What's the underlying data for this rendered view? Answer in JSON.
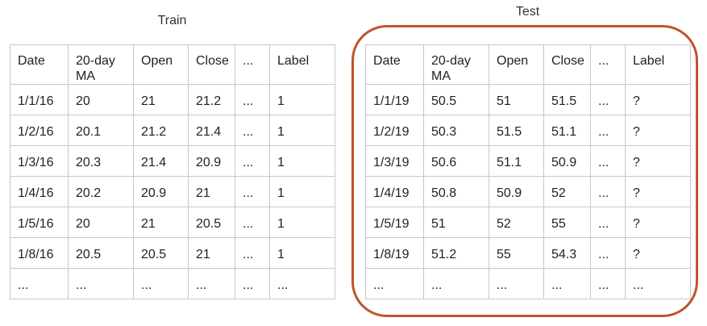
{
  "train": {
    "title": "Train",
    "headers": [
      "Date",
      "20-day MA",
      "Open",
      "Close",
      "...",
      "Label"
    ],
    "rows": [
      [
        "1/1/16",
        "20",
        "21",
        "21.2",
        "...",
        "1"
      ],
      [
        "1/2/16",
        "20.1",
        "21.2",
        "21.4",
        "...",
        "1"
      ],
      [
        "1/3/16",
        "20.3",
        "21.4",
        "20.9",
        "...",
        "1"
      ],
      [
        "1/4/16",
        "20.2",
        "20.9",
        "21",
        "...",
        "1"
      ],
      [
        "1/5/16",
        "20",
        "21",
        "20.5",
        "...",
        "1"
      ],
      [
        "1/8/16",
        "20.5",
        "20.5",
        "21",
        "...",
        "1"
      ],
      [
        "...",
        "...",
        "...",
        "...",
        "...",
        "..."
      ]
    ]
  },
  "test": {
    "title": "Test",
    "headers": [
      "Date",
      "20-day MA",
      "Open",
      "Close",
      "...",
      "Label"
    ],
    "rows": [
      [
        "1/1/19",
        "50.5",
        "51",
        "51.5",
        "...",
        "?"
      ],
      [
        "1/2/19",
        "50.3",
        "51.5",
        "51.1",
        "...",
        "?"
      ],
      [
        "1/3/19",
        "50.6",
        "51.1",
        "50.9",
        "...",
        "?"
      ],
      [
        "1/4/19",
        "50.8",
        "50.9",
        "52",
        "...",
        "?"
      ],
      [
        "1/5/19",
        "51",
        "52",
        "55",
        "...",
        "?"
      ],
      [
        "1/8/19",
        "51.2",
        "55",
        "54.3",
        "...",
        "?"
      ],
      [
        "...",
        "...",
        "...",
        "...",
        "...",
        "..."
      ]
    ]
  },
  "colors": {
    "highlight_ring": "#c0532b",
    "grid_line": "#c4c8cc"
  }
}
